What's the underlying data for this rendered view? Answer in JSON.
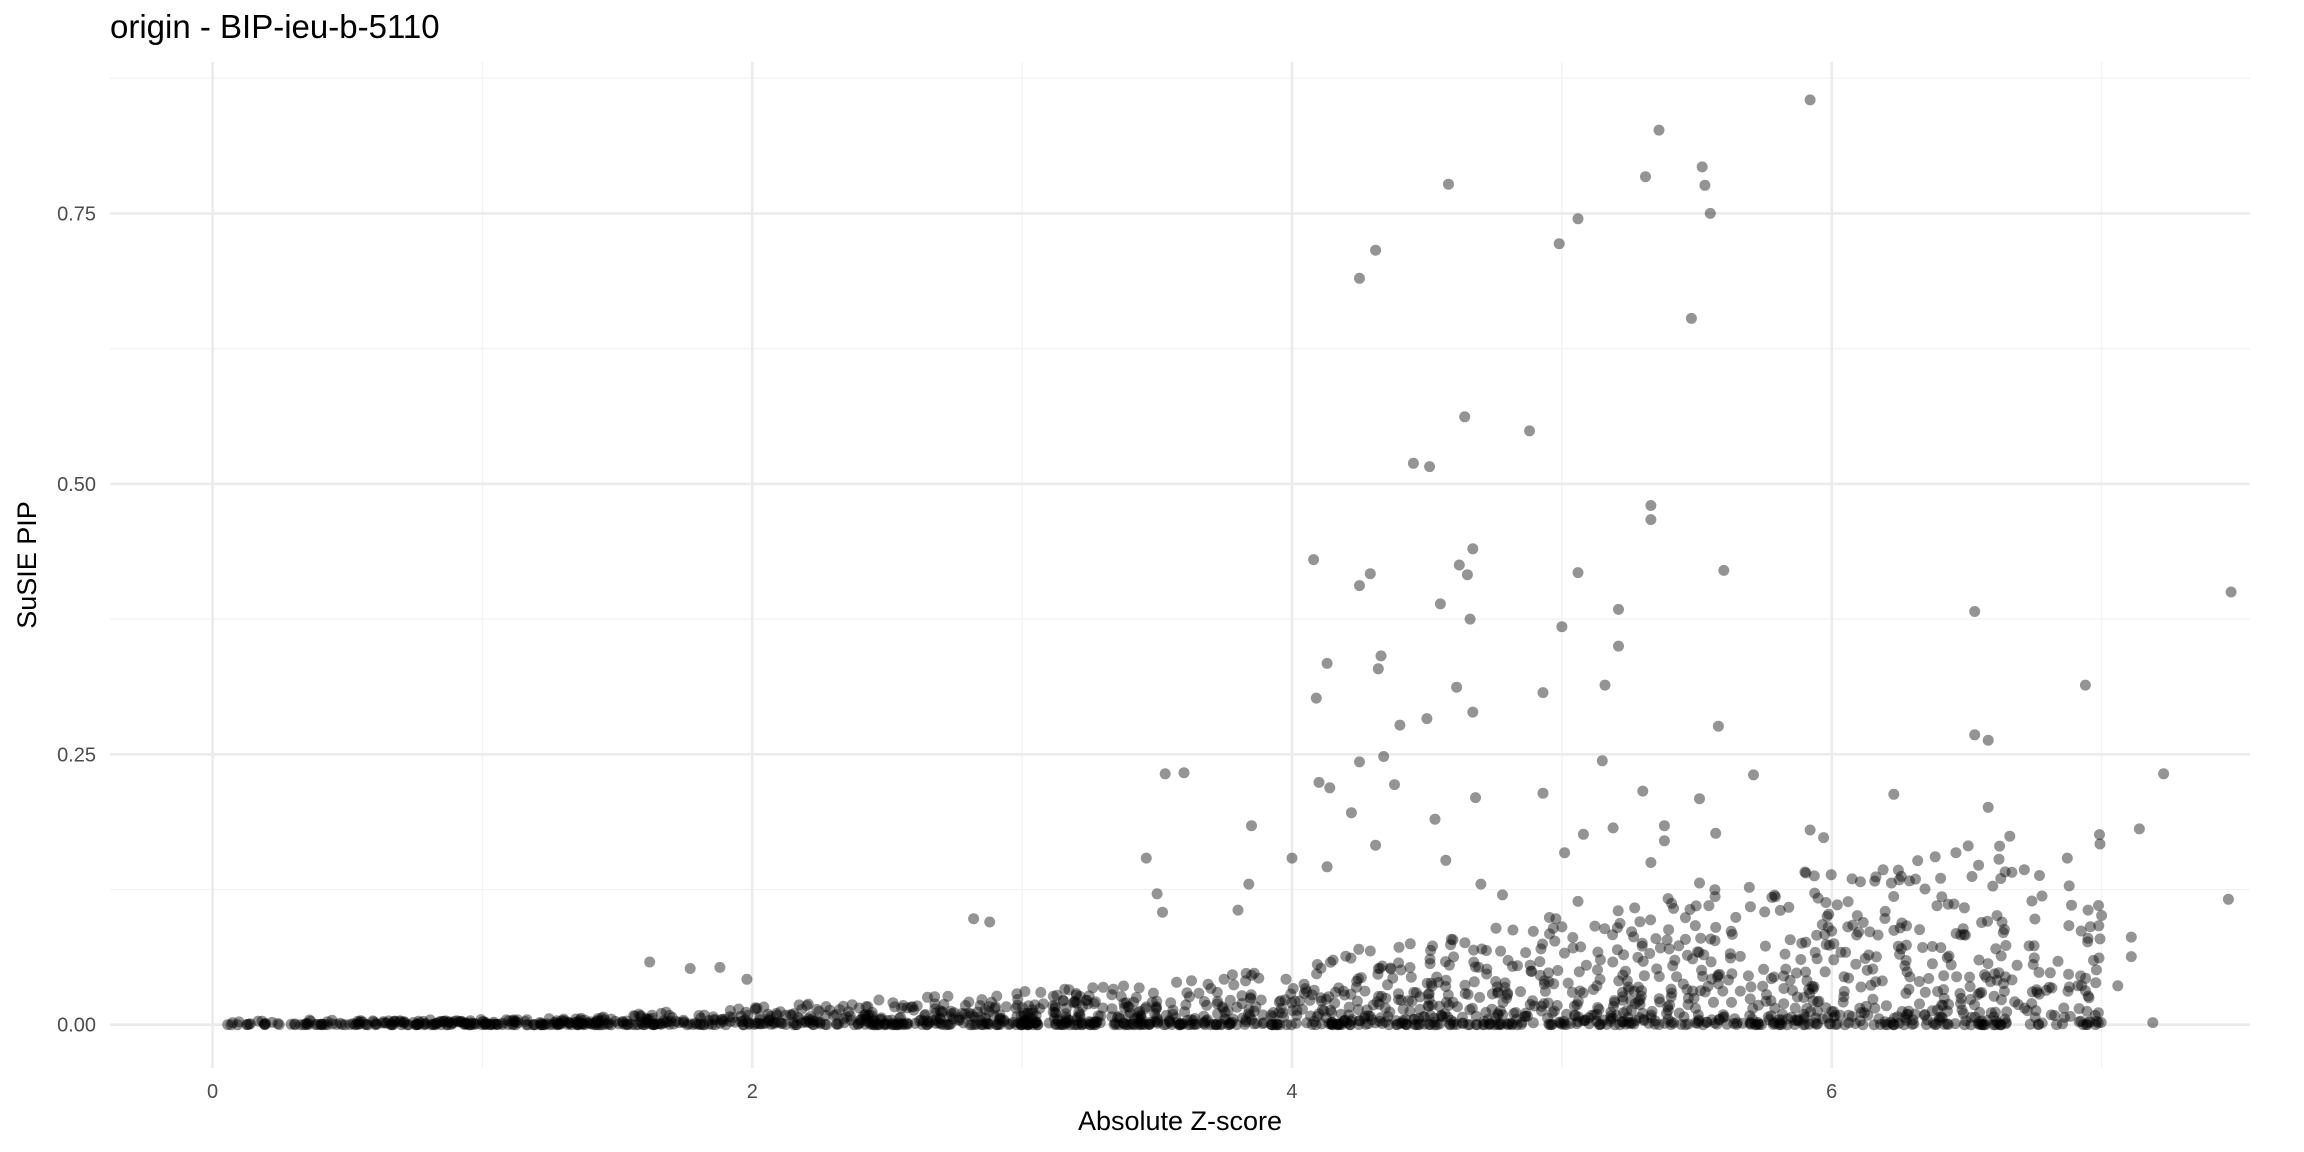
{
  "chart_data": {
    "type": "scatter",
    "title": "origin - BIP-ieu-b-5110",
    "xlabel": "Absolute Z-score",
    "ylabel": "SuSIE PIP",
    "xlim": [
      -0.38,
      7.55
    ],
    "ylim": [
      -0.04,
      0.89
    ],
    "xticks": [
      0,
      2,
      4,
      6
    ],
    "xtick_labels": [
      "0",
      "2",
      "4",
      "6"
    ],
    "yticks": [
      0.0,
      0.25,
      0.5,
      0.75
    ],
    "ytick_labels": [
      "0.00",
      "0.25",
      "0.50",
      "0.75"
    ],
    "grid": true,
    "point_color": "#000000",
    "point_opacity": 0.42,
    "notable_points": [
      {
        "x": 5.92,
        "y": 0.855
      },
      {
        "x": 5.36,
        "y": 0.827
      },
      {
        "x": 5.52,
        "y": 0.793
      },
      {
        "x": 5.53,
        "y": 0.776
      },
      {
        "x": 5.31,
        "y": 0.784
      },
      {
        "x": 4.58,
        "y": 0.777
      },
      {
        "x": 5.55,
        "y": 0.75
      },
      {
        "x": 5.06,
        "y": 0.745
      },
      {
        "x": 4.99,
        "y": 0.722
      },
      {
        "x": 4.31,
        "y": 0.716
      },
      {
        "x": 4.25,
        "y": 0.69
      },
      {
        "x": 5.48,
        "y": 0.653
      },
      {
        "x": 4.64,
        "y": 0.562
      },
      {
        "x": 4.88,
        "y": 0.549
      },
      {
        "x": 4.45,
        "y": 0.519
      },
      {
        "x": 4.51,
        "y": 0.516
      },
      {
        "x": 5.33,
        "y": 0.48
      },
      {
        "x": 5.33,
        "y": 0.467
      },
      {
        "x": 4.67,
        "y": 0.44
      },
      {
        "x": 4.08,
        "y": 0.43
      },
      {
        "x": 4.62,
        "y": 0.425
      },
      {
        "x": 5.6,
        "y": 0.42
      },
      {
        "x": 4.29,
        "y": 0.417
      },
      {
        "x": 5.06,
        "y": 0.418
      },
      {
        "x": 4.65,
        "y": 0.416
      },
      {
        "x": 4.25,
        "y": 0.406
      },
      {
        "x": 7.48,
        "y": 0.4
      },
      {
        "x": 4.55,
        "y": 0.389
      },
      {
        "x": 5.21,
        "y": 0.384
      },
      {
        "x": 6.53,
        "y": 0.382
      },
      {
        "x": 4.66,
        "y": 0.375
      },
      {
        "x": 5.0,
        "y": 0.368
      },
      {
        "x": 5.21,
        "y": 0.35
      },
      {
        "x": 4.33,
        "y": 0.341
      },
      {
        "x": 4.13,
        "y": 0.334
      },
      {
        "x": 4.32,
        "y": 0.329
      },
      {
        "x": 5.16,
        "y": 0.314
      },
      {
        "x": 6.94,
        "y": 0.314
      },
      {
        "x": 4.61,
        "y": 0.312
      },
      {
        "x": 4.93,
        "y": 0.307
      },
      {
        "x": 4.09,
        "y": 0.302
      },
      {
        "x": 4.67,
        "y": 0.289
      },
      {
        "x": 4.5,
        "y": 0.283
      },
      {
        "x": 4.4,
        "y": 0.277
      },
      {
        "x": 5.58,
        "y": 0.276
      },
      {
        "x": 6.53,
        "y": 0.268
      },
      {
        "x": 6.58,
        "y": 0.263
      },
      {
        "x": 4.34,
        "y": 0.248
      },
      {
        "x": 5.15,
        "y": 0.244
      },
      {
        "x": 4.25,
        "y": 0.243
      },
      {
        "x": 3.6,
        "y": 0.233
      },
      {
        "x": 3.53,
        "y": 0.232
      },
      {
        "x": 7.23,
        "y": 0.232
      },
      {
        "x": 5.71,
        "y": 0.231
      },
      {
        "x": 4.1,
        "y": 0.224
      },
      {
        "x": 4.38,
        "y": 0.222
      },
      {
        "x": 4.14,
        "y": 0.219
      },
      {
        "x": 5.3,
        "y": 0.216
      },
      {
        "x": 4.93,
        "y": 0.214
      },
      {
        "x": 6.23,
        "y": 0.213
      },
      {
        "x": 4.68,
        "y": 0.21
      },
      {
        "x": 5.51,
        "y": 0.209
      },
      {
        "x": 6.58,
        "y": 0.201
      },
      {
        "x": 4.22,
        "y": 0.196
      },
      {
        "x": 4.53,
        "y": 0.19
      },
      {
        "x": 3.85,
        "y": 0.184
      },
      {
        "x": 5.38,
        "y": 0.184
      },
      {
        "x": 5.19,
        "y": 0.182
      },
      {
        "x": 7.14,
        "y": 0.181
      },
      {
        "x": 5.92,
        "y": 0.18
      },
      {
        "x": 5.57,
        "y": 0.177
      },
      {
        "x": 5.08,
        "y": 0.176
      },
      {
        "x": 5.97,
        "y": 0.173
      },
      {
        "x": 5.38,
        "y": 0.17
      },
      {
        "x": 4.31,
        "y": 0.166
      },
      {
        "x": 5.01,
        "y": 0.159
      },
      {
        "x": 6.46,
        "y": 0.159
      },
      {
        "x": 4.0,
        "y": 0.154
      },
      {
        "x": 3.46,
        "y": 0.154
      },
      {
        "x": 6.62,
        "y": 0.153
      },
      {
        "x": 4.57,
        "y": 0.152
      },
      {
        "x": 5.33,
        "y": 0.15
      },
      {
        "x": 4.13,
        "y": 0.146
      },
      {
        "x": 6.77,
        "y": 0.138
      },
      {
        "x": 6.52,
        "y": 0.137
      },
      {
        "x": 6.25,
        "y": 0.134
      },
      {
        "x": 5.51,
        "y": 0.131
      },
      {
        "x": 3.84,
        "y": 0.13
      },
      {
        "x": 4.7,
        "y": 0.13
      },
      {
        "x": 3.5,
        "y": 0.121
      },
      {
        "x": 4.78,
        "y": 0.12
      },
      {
        "x": 7.47,
        "y": 0.116
      },
      {
        "x": 5.06,
        "y": 0.114
      },
      {
        "x": 6.39,
        "y": 0.11
      },
      {
        "x": 5.27,
        "y": 0.108
      },
      {
        "x": 6.95,
        "y": 0.106
      },
      {
        "x": 3.8,
        "y": 0.106
      },
      {
        "x": 3.52,
        "y": 0.104
      },
      {
        "x": 7.0,
        "y": 0.101
      },
      {
        "x": 6.26,
        "y": 0.094
      },
      {
        "x": 5.57,
        "y": 0.09
      },
      {
        "x": 2.88,
        "y": 0.095
      },
      {
        "x": 2.82,
        "y": 0.098
      },
      {
        "x": 7.11,
        "y": 0.081
      },
      {
        "x": 6.75,
        "y": 0.073
      },
      {
        "x": 6.64,
        "y": 0.088
      },
      {
        "x": 7.11,
        "y": 0.063
      },
      {
        "x": 1.62,
        "y": 0.058
      },
      {
        "x": 1.88,
        "y": 0.053
      },
      {
        "x": 1.77,
        "y": 0.052
      },
      {
        "x": 1.98,
        "y": 0.042
      },
      {
        "x": 7.19,
        "y": 0.002
      },
      {
        "x": 7.06,
        "y": 0.036
      }
    ]
  }
}
